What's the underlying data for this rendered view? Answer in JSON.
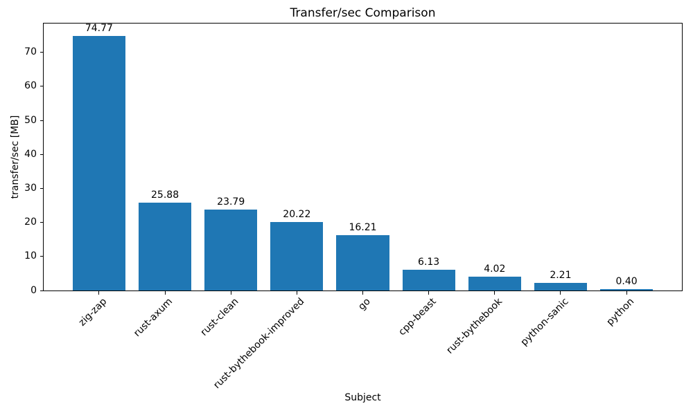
{
  "chart_data": {
    "type": "bar",
    "title": "Transfer/sec Comparison",
    "xlabel": "Subject",
    "ylabel": "transfer/sec [MB]",
    "categories": [
      "zig-zap",
      "rust-axum",
      "rust-clean",
      "rust-bythebook-improved",
      "go",
      "cpp-beast",
      "rust-bythebook",
      "python-sanic",
      "python"
    ],
    "values": [
      74.77,
      25.88,
      23.79,
      20.22,
      16.21,
      6.13,
      4.02,
      2.21,
      0.4
    ],
    "value_labels": [
      "74.77",
      "25.88",
      "23.79",
      "20.22",
      "16.21",
      "6.13",
      "4.02",
      "2.21",
      "0.40"
    ],
    "yticks": [
      0,
      10,
      20,
      30,
      40,
      50,
      60,
      70
    ],
    "ylim": [
      0,
      78.5
    ],
    "bar_color": "#1f77b4",
    "bar_width_fraction": 0.8,
    "x_tick_rotation": 45,
    "grid": false,
    "legend": null
  }
}
